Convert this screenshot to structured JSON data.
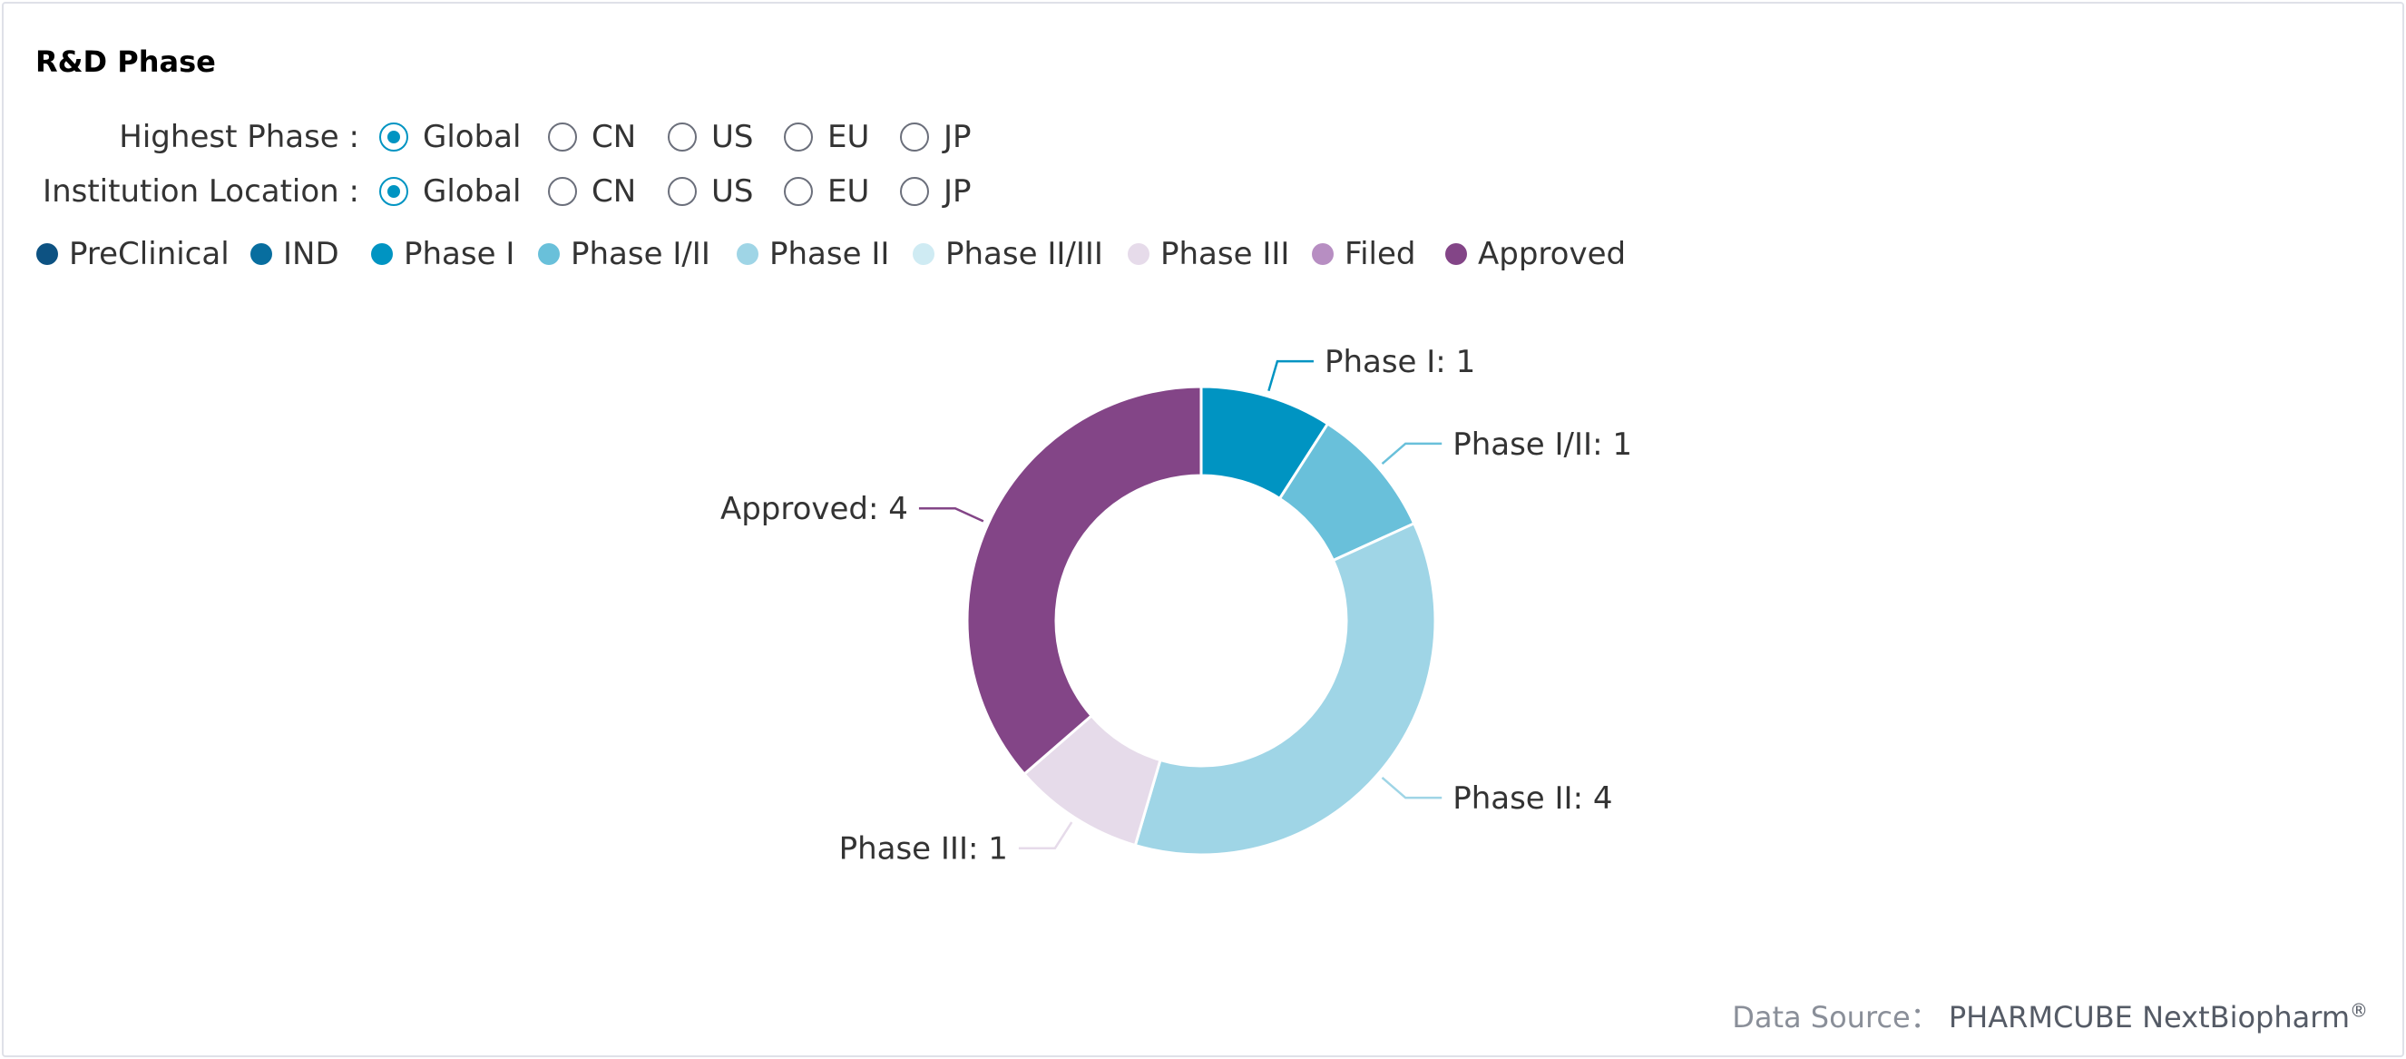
{
  "title": "R&D Phase",
  "filters": {
    "highest_phase": {
      "label": "Highest Phase :",
      "options": [
        "Global",
        "CN",
        "US",
        "EU",
        "JP"
      ],
      "selected": "Global"
    },
    "institution_location": {
      "label": "Institution Location :",
      "options": [
        "Global",
        "CN",
        "US",
        "EU",
        "JP"
      ],
      "selected": "Global"
    }
  },
  "legend": [
    {
      "label": "PreClinical",
      "color": "#0d5282"
    },
    {
      "label": "IND",
      "color": "#086e9f"
    },
    {
      "label": "Phase I",
      "color": "#0094c2"
    },
    {
      "label": "Phase I/II",
      "color": "#69c0da"
    },
    {
      "label": "Phase II",
      "color": "#9fd5e6"
    },
    {
      "label": "Phase II/III",
      "color": "#cfebf3"
    },
    {
      "label": "Phase III",
      "color": "#e6dbea"
    },
    {
      "label": "Filed",
      "color": "#b78ec2"
    },
    {
      "label": "Approved",
      "color": "#834587"
    }
  ],
  "chart_data": {
    "type": "pie",
    "donut": true,
    "slices": [
      {
        "label": "Phase I",
        "value": 1,
        "color": "#0094c2",
        "display": "Phase I: 1"
      },
      {
        "label": "Phase I/II",
        "value": 1,
        "color": "#69c0da",
        "display": "Phase I/II: 1"
      },
      {
        "label": "Phase II",
        "value": 4,
        "color": "#9fd5e6",
        "display": "Phase II: 4"
      },
      {
        "label": "Phase III",
        "value": 1,
        "color": "#e6dbea",
        "display": "Phase III: 1"
      },
      {
        "label": "Approved",
        "value": 4,
        "color": "#834587",
        "display": "Approved: 4"
      }
    ]
  },
  "source": {
    "label": "Data Source：",
    "brand": "PHARMCUBE NextBiopharm",
    "mark": "®"
  }
}
